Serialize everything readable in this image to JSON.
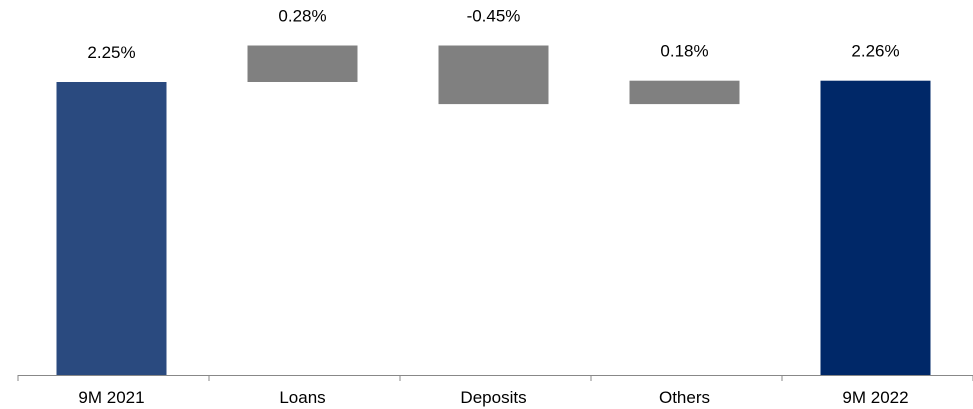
{
  "chart_data": {
    "type": "bar",
    "subtype": "waterfall",
    "title": "",
    "xlabel": "",
    "ylabel": "",
    "categories": [
      "9M 2021",
      "Loans",
      "Deposits",
      "Others",
      "9M 2022"
    ],
    "labels": [
      "2.25%",
      "0.28%",
      "-0.45%",
      "0.18%",
      "2.26%"
    ],
    "bars": [
      {
        "category": "9M 2021",
        "kind": "total",
        "start": 0,
        "end": 2.25,
        "color": "#2a4a7f"
      },
      {
        "category": "Loans",
        "kind": "increase",
        "start": 2.25,
        "end": 2.53,
        "color": "#808080"
      },
      {
        "category": "Deposits",
        "kind": "decrease",
        "start": 2.53,
        "end": 2.08,
        "color": "#808080"
      },
      {
        "category": "Others",
        "kind": "increase",
        "start": 2.08,
        "end": 2.26,
        "color": "#808080"
      },
      {
        "category": "9M 2022",
        "kind": "total",
        "start": 0,
        "end": 2.26,
        "color": "#002868"
      }
    ],
    "ylim": [
      0,
      2.53
    ],
    "grid": false,
    "legend": "none"
  }
}
